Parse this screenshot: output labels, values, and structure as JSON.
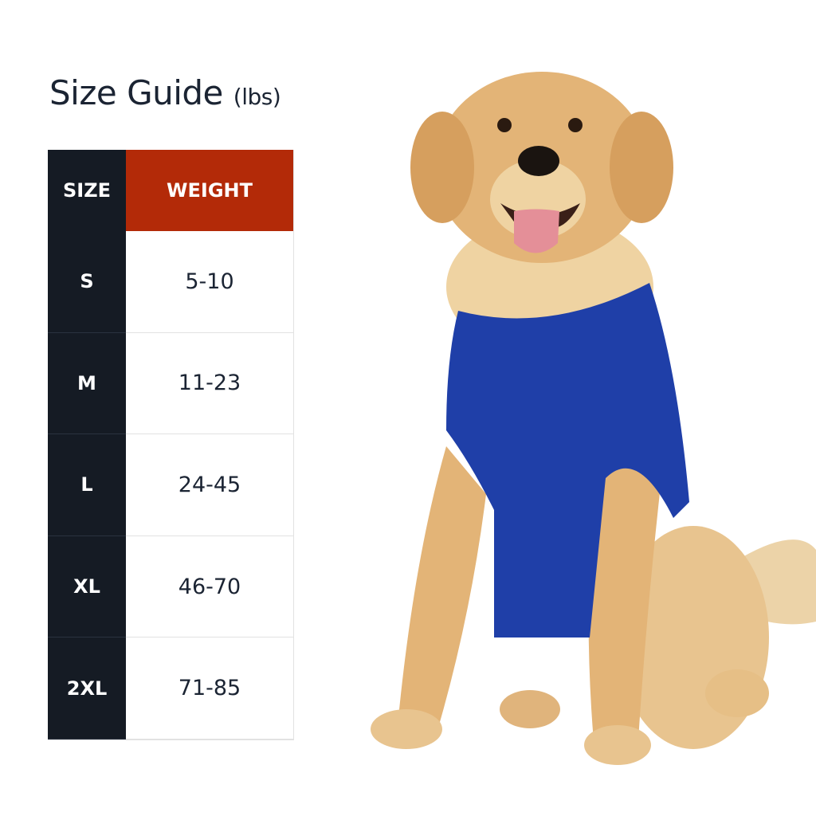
{
  "title": {
    "main": "Size Guide",
    "unit": "(lbs)"
  },
  "table": {
    "headers": {
      "size": "SIZE",
      "weight": "WEIGHT"
    },
    "rows": [
      {
        "size": "S",
        "weight": "5-10"
      },
      {
        "size": "M",
        "weight": "11-23"
      },
      {
        "size": "L",
        "weight": "24-45"
      },
      {
        "size": "XL",
        "weight": "46-70"
      },
      {
        "size": "2XL",
        "weight": "71-85"
      }
    ]
  },
  "colors": {
    "header_size_bg": "#151b24",
    "header_weight_bg": "#b32a08",
    "vest": "#1f3fa8",
    "dog_fur": "#e3b477"
  }
}
